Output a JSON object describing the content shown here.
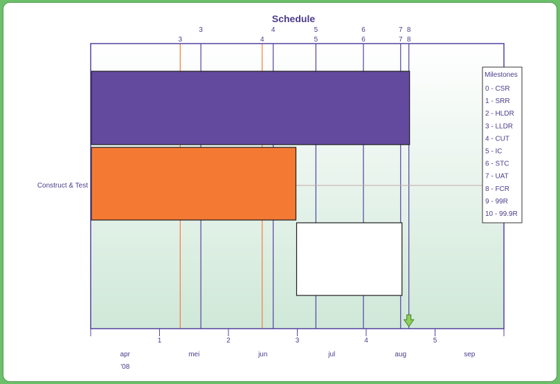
{
  "colors": {
    "frame_background": "#6cc06c",
    "plot_gradient_top": "#ffffff",
    "plot_gradient_bottom": "#cfe8d8",
    "purple": "#644a9e",
    "orange": "#f47a34",
    "line_purple": "#5040a0",
    "line_orange": "#f47a34",
    "arrow": "#8ccf5a"
  },
  "chart_data": {
    "type": "gantt",
    "title": "Schedule",
    "x_range_months": [
      0,
      6
    ],
    "y_labels": [
      "Construct & Test"
    ],
    "bars": [
      {
        "color": "purple",
        "start": 0.0,
        "end": 4.63,
        "lane": 0
      },
      {
        "color": "orange",
        "start": 0.0,
        "end": 2.98,
        "lane": 1
      },
      {
        "color": "white",
        "start": 2.98,
        "end": 4.52,
        "lane": 2
      }
    ],
    "bottom_ticks": [
      {
        "value": 1,
        "label": "1"
      },
      {
        "value": 2,
        "label": "2"
      },
      {
        "value": 3,
        "label": "3"
      },
      {
        "value": 4,
        "label": "4"
      },
      {
        "value": 5,
        "label": "5"
      }
    ],
    "month_labels": [
      {
        "value": 0.5,
        "label": "apr"
      },
      {
        "value": 1.5,
        "label": "mei"
      },
      {
        "value": 2.5,
        "label": "jun"
      },
      {
        "value": 3.5,
        "label": "jul"
      },
      {
        "value": 4.5,
        "label": "aug"
      },
      {
        "value": 5.5,
        "label": "sep"
      }
    ],
    "year_label": {
      "value": 0.5,
      "label": "'08"
    },
    "milestone_lines": [
      {
        "value": 1.3,
        "label": "3",
        "row": 2,
        "color": "orange"
      },
      {
        "value": 1.6,
        "label": "3",
        "row": 1,
        "color": "purple"
      },
      {
        "value": 2.49,
        "label": "4",
        "row": 2,
        "color": "orange"
      },
      {
        "value": 2.65,
        "label": "4",
        "row": 1,
        "color": "purple"
      },
      {
        "value": 3.27,
        "label": "5",
        "row": 1,
        "color": "purple"
      },
      {
        "value": 3.27,
        "label": "5",
        "row": 2,
        "color": "purple"
      },
      {
        "value": 3.96,
        "label": "6",
        "row": 1,
        "color": "purple"
      },
      {
        "value": 3.96,
        "label": "6",
        "row": 2,
        "color": "purple"
      },
      {
        "value": 4.5,
        "label": "7",
        "row": 1,
        "color": "purple"
      },
      {
        "value": 4.5,
        "label": "7",
        "row": 2,
        "color": "purple"
      },
      {
        "value": 4.62,
        "label": "8",
        "row": 1,
        "color": "purple"
      },
      {
        "value": 4.62,
        "label": "8",
        "row": 2,
        "color": "purple"
      }
    ],
    "today_marker": 4.62,
    "legend": {
      "title": "Milestones",
      "placement": "right",
      "items": [
        "0 - CSR",
        "1 - SRR",
        "2 - HLDR",
        "3 - LLDR",
        "4 - CUT",
        "5 - IC",
        "6 - STC",
        "7 - UAT",
        "8 - FCR",
        "9 - 99R",
        "10 - 99.9R"
      ]
    }
  }
}
